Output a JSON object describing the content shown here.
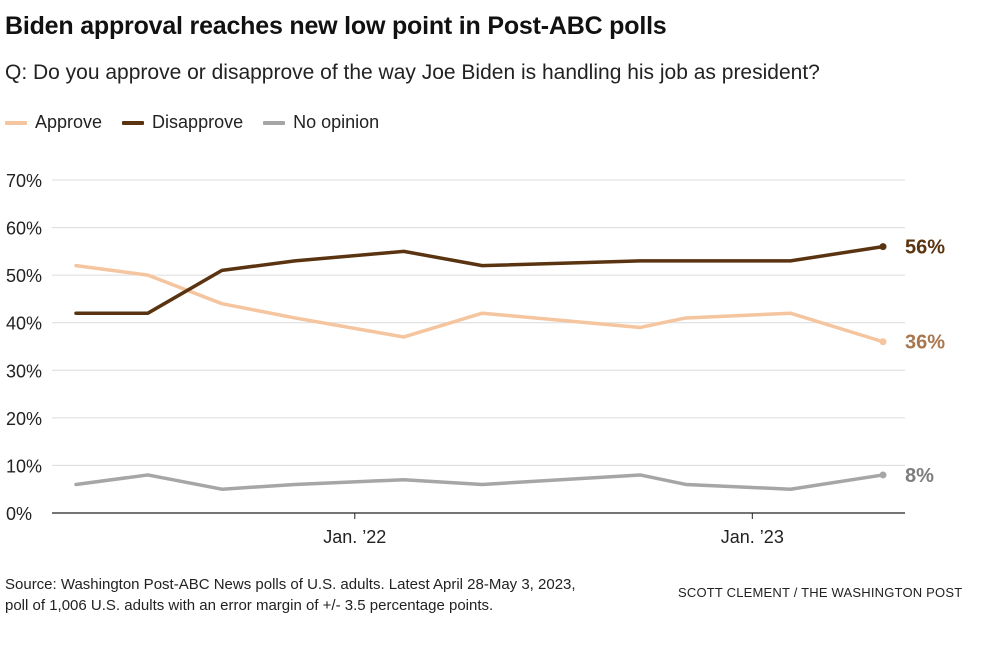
{
  "title": "Biden approval reaches new low point in Post-ABC polls",
  "subtitle": "Q: Do you approve or disapprove of the way Joe Biden is handling his job as president?",
  "source": "Source: Washington Post-ABC News polls of U.S. adults. Latest April 28-May 3, 2023,",
  "source_line2": "poll of 1,006 U.S. adults with an error margin of +/- 3.5 percentage points.",
  "credit": "SCOTT CLEMENT / THE WASHINGTON POST",
  "chart_data": {
    "type": "line",
    "title": "Biden approval reaches new low point in Post-ABC polls",
    "xlabel": "",
    "ylabel": "",
    "ylim": [
      0,
      70
    ],
    "y_ticks": [
      "0%",
      "10%",
      "20%",
      "30%",
      "40%",
      "50%",
      "60%",
      "70%"
    ],
    "x_ticks": [
      {
        "label": "Jan. ’22",
        "date": "2022-01-01"
      },
      {
        "label": "Jan. ’23",
        "date": "2023-01-01"
      }
    ],
    "grid": true,
    "legend_position": "top-left",
    "x": [
      "2021-04-20",
      "2021-06-25",
      "2021-09-01",
      "2021-11-07",
      "2022-02-15",
      "2022-04-28",
      "2022-09-20",
      "2022-11-01",
      "2023-02-05",
      "2023-05-01"
    ],
    "series": [
      {
        "name": "Approve",
        "color": "#f4c59f",
        "end_label": "36%",
        "label_color": "#a8774f",
        "values": [
          52,
          50,
          44,
          41,
          37,
          42,
          39,
          41,
          42,
          36
        ]
      },
      {
        "name": "Disapprove",
        "color": "#5a3410",
        "end_label": "56%",
        "label_color": "#5a3410",
        "values": [
          42,
          42,
          51,
          53,
          55,
          52,
          53,
          53,
          53,
          56
        ]
      },
      {
        "name": "No opinion",
        "color": "#a6a6a6",
        "end_label": "8%",
        "label_color": "#7d7d7d",
        "values": [
          6,
          8,
          5,
          6,
          7,
          6,
          8,
          6,
          5,
          8
        ]
      }
    ]
  }
}
